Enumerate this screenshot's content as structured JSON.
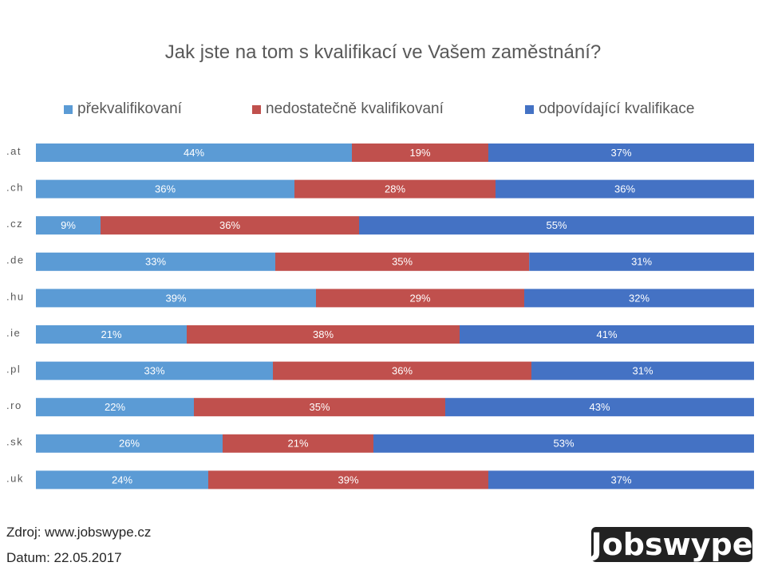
{
  "chart_data": {
    "type": "bar",
    "orientation": "horizontal",
    "stacked": true,
    "title": "Jak jste na tom s kvalifikací ve Vašem zaměstnání?",
    "xlabel": "",
    "ylabel": "",
    "legend_position": "top",
    "grid": false,
    "categories": [
      ".at",
      ".ch",
      ".cz",
      ".de",
      ".hu",
      ".ie",
      ".pl",
      ".ro",
      ".sk",
      ".uk"
    ],
    "series": [
      {
        "name": "překvalifikovaní",
        "color": "#5B9BD5",
        "values": [
          44,
          36,
          9,
          33,
          39,
          21,
          33,
          22,
          26,
          24
        ],
        "labels": [
          "44%",
          "36%",
          "9%",
          "33%",
          "39%",
          "21%",
          "33%",
          "22%",
          "26%",
          "24%"
        ]
      },
      {
        "name": "nedostatečně kvalifikovaní",
        "color": "#C0504D",
        "values": [
          19,
          28,
          36,
          35,
          29,
          38,
          36,
          35,
          21,
          39
        ],
        "labels": [
          "19%",
          "28%",
          "36%",
          "35%",
          "29%",
          "38%",
          "36%",
          "35%",
          "21%",
          "39%"
        ]
      },
      {
        "name": "odpovídající kvalifikace",
        "color": "#4472C4",
        "values": [
          37,
          36,
          55,
          31,
          32,
          41,
          31,
          43,
          53,
          37
        ],
        "labels": [
          "37%",
          "36%",
          "55%",
          "31%",
          "32%",
          "41%",
          "31%",
          "43%",
          "53%",
          "37%"
        ]
      }
    ]
  },
  "footer": {
    "source": "Zdroj: www.jobswype.cz",
    "date": "Datum: 22.05.2017"
  },
  "logo": {
    "text": "Jobswype"
  }
}
